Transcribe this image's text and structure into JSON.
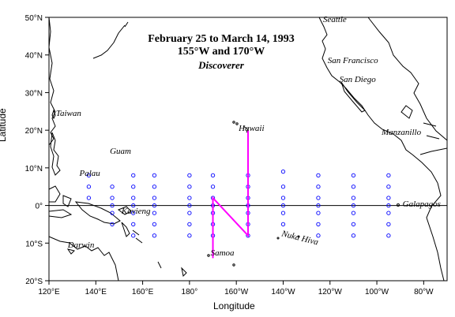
{
  "title": {
    "line1": "February 25 to March 14, 1993",
    "line2": "155°W and 170°W",
    "line3": "Discoverer"
  },
  "axes": {
    "xlabel": "Longitude",
    "ylabel": "Latitude",
    "lon_range": [
      120,
      290
    ],
    "lat_range": [
      -20,
      50
    ],
    "x_ticks": [
      {
        "lon": 120,
        "label": "120°E"
      },
      {
        "lon": 140,
        "label": "140°E"
      },
      {
        "lon": 160,
        "label": "160°E"
      },
      {
        "lon": 180,
        "label": "180°"
      },
      {
        "lon": 200,
        "label": "160°W"
      },
      {
        "lon": 220,
        "label": "140°W"
      },
      {
        "lon": 240,
        "label": "120°W"
      },
      {
        "lon": 260,
        "label": "100°W"
      },
      {
        "lon": 280,
        "label": "80°W"
      }
    ],
    "y_ticks": [
      {
        "lat": 50,
        "label": "50°N"
      },
      {
        "lat": 40,
        "label": "40°N"
      },
      {
        "lat": 30,
        "label": "30°N"
      },
      {
        "lat": 20,
        "label": "20°N"
      },
      {
        "lat": 10,
        "label": "10°N"
      },
      {
        "lat": 0,
        "label": "0°"
      },
      {
        "lat": -10,
        "label": "10°S"
      },
      {
        "lat": -20,
        "label": "20°S"
      }
    ]
  },
  "places": [
    {
      "name": "Seattle",
      "lon": 237,
      "lat": 49
    },
    {
      "name": "San Francisco",
      "lon": 239,
      "lat": 38
    },
    {
      "name": "San Diego",
      "lon": 244,
      "lat": 33
    },
    {
      "name": "Taiwan",
      "lon": 123,
      "lat": 24
    },
    {
      "name": "Hawaii",
      "lon": 201,
      "lat": 20
    },
    {
      "name": "Manzanillo",
      "lon": 262,
      "lat": 19
    },
    {
      "name": "Guam",
      "lon": 146,
      "lat": 14
    },
    {
      "name": "Palau",
      "lon": 133,
      "lat": 8
    },
    {
      "name": "Kavieng",
      "lon": 151,
      "lat": -2
    },
    {
      "name": "Galapagos",
      "lon": 271,
      "lat": 0
    },
    {
      "name": "Nuka Hiva",
      "lon": 219,
      "lat": -9
    },
    {
      "name": "Darwin",
      "lon": 128,
      "lat": -11
    },
    {
      "name": "Samoa",
      "lon": 189,
      "lat": -13
    }
  ],
  "ship_track": [
    {
      "lon": 190,
      "lat": -14
    },
    {
      "lon": 190,
      "lat": 2
    },
    {
      "lon": 205,
      "lat": -8
    },
    {
      "lon": 205,
      "lat": 20
    }
  ],
  "colors": {
    "track": "#ff00ff",
    "buoy": "#0000ff",
    "land": "#000000"
  },
  "buoy_array": [
    {
      "lon": 137,
      "lats": [
        8,
        5,
        2
      ]
    },
    {
      "lon": 147,
      "lats": [
        5,
        2,
        0,
        -2,
        -5
      ]
    },
    {
      "lon": 156,
      "lats": [
        8,
        5,
        2,
        0,
        -2,
        -5,
        -8
      ]
    },
    {
      "lon": 165,
      "lats": [
        8,
        5,
        2,
        0,
        -2,
        -5,
        -8
      ]
    },
    {
      "lon": 180,
      "lats": [
        8,
        5,
        2,
        0,
        -2,
        -5,
        -8
      ]
    },
    {
      "lon": 190,
      "lats": [
        8,
        5,
        2,
        0,
        -2,
        -5,
        -8
      ]
    },
    {
      "lon": 205,
      "lats": [
        8,
        5,
        2,
        0,
        -2,
        -5,
        -8
      ]
    },
    {
      "lon": 220,
      "lats": [
        9,
        5,
        2,
        0,
        -2,
        -5
      ]
    },
    {
      "lon": 235,
      "lats": [
        8,
        5,
        2,
        0,
        -2,
        -5,
        -8
      ]
    },
    {
      "lon": 250,
      "lats": [
        8,
        5,
        2,
        0,
        -2,
        -5,
        -8
      ]
    },
    {
      "lon": 265,
      "lats": [
        8,
        5,
        2,
        0,
        -2,
        -5,
        -8
      ]
    }
  ]
}
